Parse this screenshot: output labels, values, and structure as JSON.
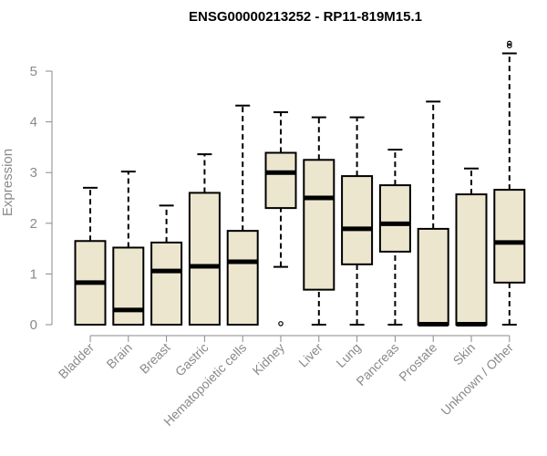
{
  "chart_data": {
    "type": "boxplot",
    "title": "ENSG00000213252 - RP11-819M15.1",
    "xlabel": "",
    "ylabel": "Expression",
    "ylim": [
      0,
      5.5
    ],
    "yticks": [
      0,
      1,
      2,
      3,
      4,
      5
    ],
    "colors": {
      "box_fill": "#ede6cf",
      "stroke": "#000000",
      "axis": "#8a8a8a"
    },
    "categories": [
      "Bladder",
      "Brain",
      "Breast",
      "Gastric",
      "Hematopoietic cells",
      "Kidney",
      "Liver",
      "Lung",
      "Pancreas",
      "Prostate",
      "Skin",
      "Unknown / Other"
    ],
    "boxes": [
      {
        "name": "Bladder",
        "min": 0,
        "q1": 0,
        "median": 0.83,
        "q3": 1.65,
        "max": 2.7,
        "outliers": []
      },
      {
        "name": "Brain",
        "min": 0,
        "q1": 0,
        "median": 0.29,
        "q3": 1.52,
        "max": 3.02,
        "outliers": []
      },
      {
        "name": "Breast",
        "min": 0,
        "q1": 0,
        "median": 1.06,
        "q3": 1.62,
        "max": 2.35,
        "outliers": []
      },
      {
        "name": "Gastric",
        "min": 0,
        "q1": 0,
        "median": 1.15,
        "q3": 2.6,
        "max": 3.36,
        "outliers": []
      },
      {
        "name": "Hematopoietic cells",
        "min": 0,
        "q1": 0,
        "median": 1.24,
        "q3": 1.85,
        "max": 4.32,
        "outliers": []
      },
      {
        "name": "Kidney",
        "min": 1.14,
        "q1": 2.3,
        "median": 3.0,
        "q3": 3.39,
        "max": 4.19,
        "outliers": [
          0.02
        ]
      },
      {
        "name": "Liver",
        "min": 0,
        "q1": 0.69,
        "median": 2.5,
        "q3": 3.25,
        "max": 4.09,
        "outliers": []
      },
      {
        "name": "Lung",
        "min": 0,
        "q1": 1.19,
        "median": 1.89,
        "q3": 2.93,
        "max": 4.09,
        "outliers": []
      },
      {
        "name": "Pancreas",
        "min": 0,
        "q1": 1.44,
        "median": 1.99,
        "q3": 2.75,
        "max": 3.45,
        "outliers": []
      },
      {
        "name": "Prostate",
        "min": 0,
        "q1": 0,
        "median": 0.01,
        "q3": 1.89,
        "max": 4.4,
        "outliers": []
      },
      {
        "name": "Skin",
        "min": 0,
        "q1": 0,
        "median": 0.01,
        "q3": 2.57,
        "max": 3.08,
        "outliers": []
      },
      {
        "name": "Unknown / Other",
        "min": 0,
        "q1": 0.83,
        "median": 1.62,
        "q3": 2.66,
        "max": 5.35,
        "outliers": [
          5.5,
          5.55
        ]
      }
    ]
  }
}
